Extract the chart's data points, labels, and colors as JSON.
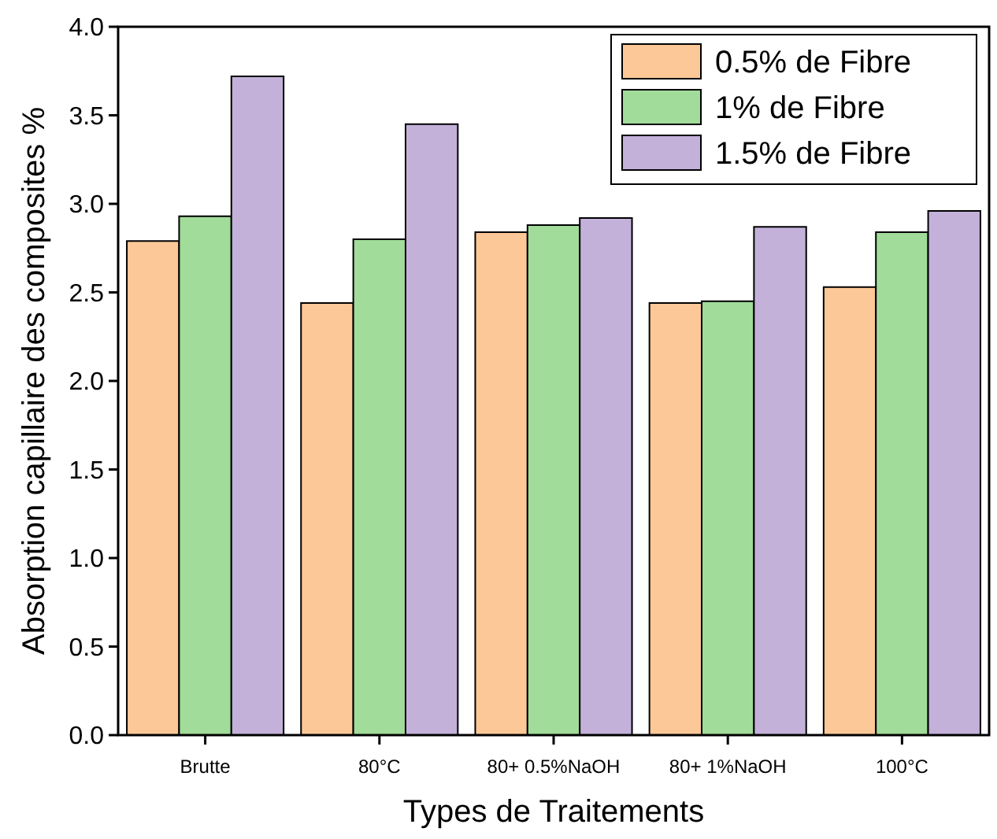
{
  "chart_data": {
    "type": "bar",
    "xlabel": "Types de Traitements",
    "ylabel": "Absorption capillaire des composites %",
    "categories": [
      "Brutte",
      "80°C",
      "80+ 0.5%NaOH",
      "80+ 1%NaOH",
      "100°C"
    ],
    "series": [
      {
        "name": "0.5% de Fibre",
        "color": "#fdc897",
        "values": [
          2.79,
          2.44,
          2.84,
          2.44,
          2.53
        ]
      },
      {
        "name": "1% de Fibre",
        "color": "#a1dc9a",
        "values": [
          2.93,
          2.8,
          2.88,
          2.45,
          2.84
        ]
      },
      {
        "name": "1.5% de Fibre",
        "color": "#c3b1da",
        "values": [
          3.72,
          3.45,
          2.92,
          2.87,
          2.96
        ]
      }
    ],
    "ylim": [
      0,
      4
    ],
    "yticks": [
      {
        "value": 0,
        "label": "0.0"
      },
      {
        "value": 0.5,
        "label": "0.5"
      },
      {
        "value": 1,
        "label": "1.0"
      },
      {
        "value": 1.5,
        "label": "1.5"
      },
      {
        "value": 2,
        "label": "2.0"
      },
      {
        "value": 2.5,
        "label": "2.5"
      },
      {
        "value": 3,
        "label": "3.0"
      },
      {
        "value": 3.5,
        "label": "3.5"
      },
      {
        "value": 4,
        "label": "4.0"
      }
    ],
    "grid": false,
    "legend": "top right"
  }
}
